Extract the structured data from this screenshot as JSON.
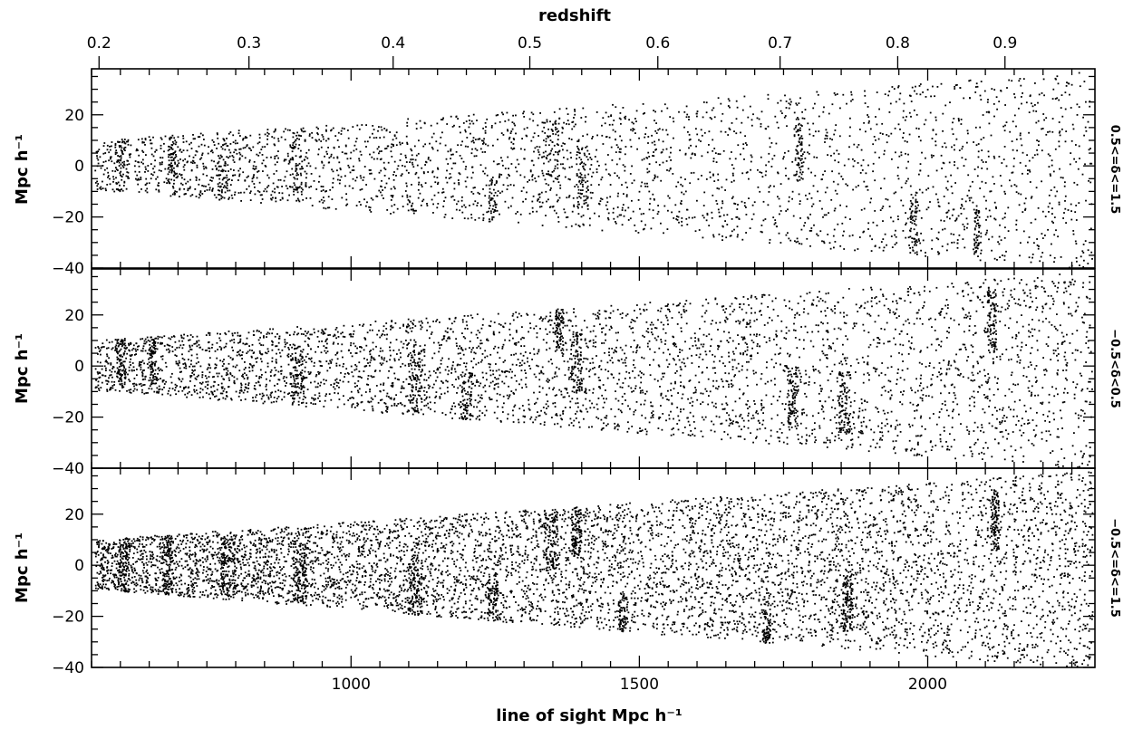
{
  "chart_data": {
    "type": "scatter",
    "top_axis": {
      "label": "redshift",
      "ticks": [
        {
          "z": 0.2,
          "x": 563,
          "label": "0.2"
        },
        {
          "z": 0.3,
          "x": 823,
          "label": "0.3"
        },
        {
          "z": 0.4,
          "x": 1073,
          "label": "0.4"
        },
        {
          "z": 0.5,
          "x": 1310,
          "label": "0.5"
        },
        {
          "z": 0.6,
          "x": 1532,
          "label": "0.6"
        },
        {
          "z": 0.7,
          "x": 1744,
          "label": "0.7"
        },
        {
          "z": 0.8,
          "x": 1948,
          "label": "0.8"
        },
        {
          "z": 0.9,
          "x": 2134,
          "label": "0.9"
        }
      ]
    },
    "x_axis": {
      "label": "line of sight Mpc h⁻¹",
      "range": [
        550,
        2290
      ],
      "major_ticks": [
        1000,
        1500,
        2000
      ],
      "minor_step": 50,
      "tick_labels": [
        "1000",
        "1500",
        "2000"
      ]
    },
    "y_axis": {
      "label": "Mpc h⁻¹",
      "range": [
        -40,
        38
      ],
      "major_ticks": [
        -40,
        -20,
        0,
        20
      ],
      "minor_step": 5,
      "tick_labels": [
        "−40",
        "−20",
        "0",
        "20"
      ]
    },
    "panels": [
      {
        "id": "top",
        "side_label": "0.5<=δ<=1.5",
        "n_points": 3600,
        "seed": 11,
        "clusters": [
          [
            600,
            0,
            7
          ],
          [
            688,
            0,
            5
          ],
          [
            776,
            -2,
            6
          ],
          [
            910,
            2,
            9
          ],
          [
            1245,
            -17,
            5
          ],
          [
            1345,
            6,
            10
          ],
          [
            1400,
            -4,
            7
          ],
          [
            1775,
            6,
            5
          ],
          [
            1975,
            -22,
            5
          ],
          [
            2085,
            -28,
            4
          ]
        ]
      },
      {
        "id": "middle",
        "side_label": "−0.5<δ<0.5",
        "n_points": 5000,
        "seed": 23,
        "clusters": [
          [
            600,
            5,
            5
          ],
          [
            655,
            5,
            4
          ],
          [
            905,
            -4,
            8
          ],
          [
            1110,
            -6,
            8
          ],
          [
            1200,
            -14,
            6
          ],
          [
            1360,
            18,
            5
          ],
          [
            1390,
            2,
            6
          ],
          [
            1765,
            -12,
            6
          ],
          [
            1855,
            -14,
            7
          ],
          [
            2110,
            18,
            5
          ]
        ]
      },
      {
        "id": "bottom",
        "side_label": "−0.5<=δ<=1.5",
        "n_points": 7800,
        "seed": 37,
        "clusters": [
          [
            605,
            0,
            7
          ],
          [
            680,
            0,
            6
          ],
          [
            785,
            0,
            8
          ],
          [
            910,
            -2,
            8
          ],
          [
            1110,
            -8,
            8
          ],
          [
            1245,
            -17,
            6
          ],
          [
            1345,
            10,
            8
          ],
          [
            1390,
            16,
            6
          ],
          [
            1470,
            -22,
            5
          ],
          [
            1720,
            -30,
            4
          ],
          [
            1860,
            -14,
            6
          ],
          [
            2115,
            18,
            5
          ]
        ]
      }
    ]
  }
}
